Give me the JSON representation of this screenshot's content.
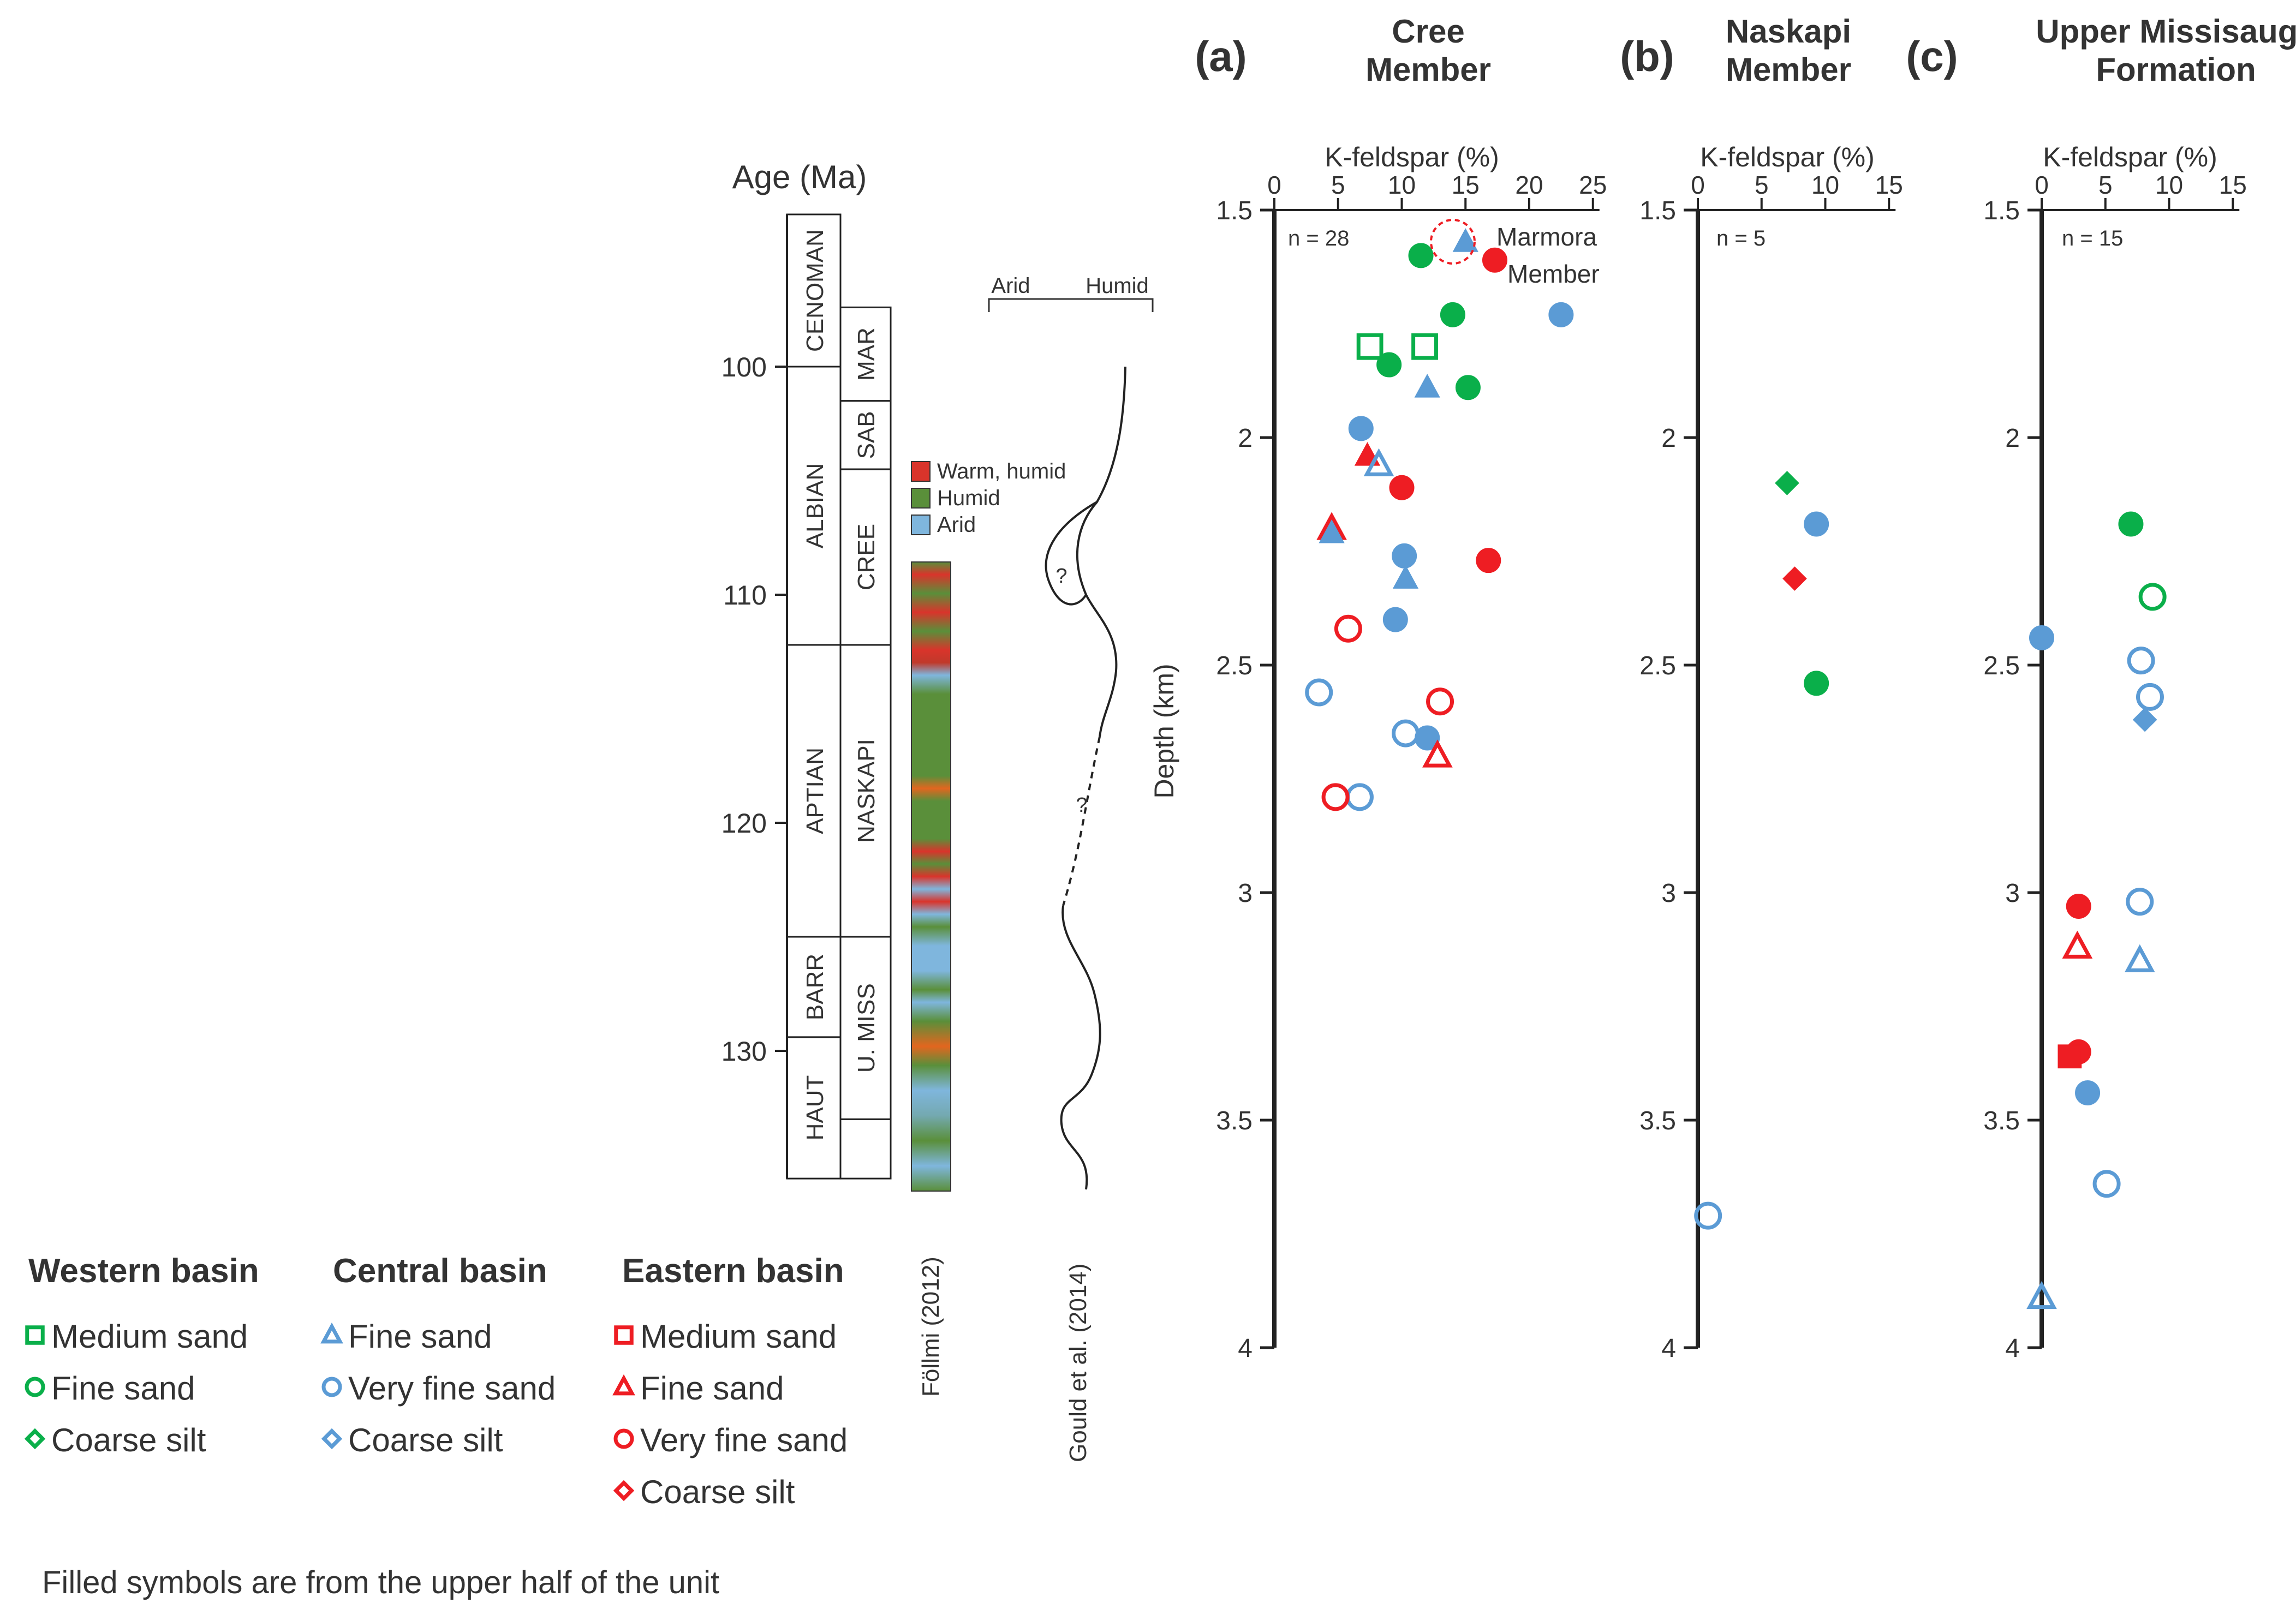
{
  "colors": {
    "western": "#0aaf4a",
    "central": "#5b9bd5",
    "eastern": "#ee1d23",
    "axis": "#222222",
    "warm_humid": "#d9342b",
    "humid": "#5a8f3a",
    "arid": "#7fb6dd"
  },
  "stratigraphy": {
    "age_title": "Age (Ma)",
    "age_ticks": [
      "100",
      "110",
      "120",
      "130"
    ],
    "stages": [
      {
        "label": "CENOMAN",
        "top": 93.9,
        "bottom": 100
      },
      {
        "label": "ALBIAN",
        "top": 100,
        "bottom": 112.2
      },
      {
        "label": "APTIAN",
        "top": 112.2,
        "bottom": 125
      },
      {
        "label": "BARR",
        "top": 125,
        "bottom": 129.4
      },
      {
        "label": "HAUT",
        "top": 129.4,
        "bottom": 135.6
      }
    ],
    "units": [
      {
        "label": "MAR",
        "top": 97.4,
        "bottom": 101.5
      },
      {
        "label": "SAB",
        "top": 101.5,
        "bottom": 104.5
      },
      {
        "label": "CREE",
        "top": 104.5,
        "bottom": 112.2
      },
      {
        "label": "NASKAPI",
        "top": 112.2,
        "bottom": 125
      },
      {
        "label": "U. MISS",
        "top": 125,
        "bottom": 133
      }
    ],
    "climate_legend": [
      "Warm, humid",
      "Humid",
      "Arid"
    ],
    "follmi_label": "Föllmi (2012)",
    "gould_label": "Gould et al. (2014)",
    "arid_label": "Arid",
    "humid_label": "Humid",
    "question_marks": [
      "?",
      "?"
    ]
  },
  "panels": [
    {
      "letter": "(a)",
      "title_lines": [
        "Cree",
        "Member"
      ],
      "x_label": "K-feldspar (%)",
      "n_label": "n = 28"
    },
    {
      "letter": "(b)",
      "title_lines": [
        "Naskapi",
        "Member"
      ],
      "x_label": "K-feldspar (%)",
      "n_label": "n = 5"
    },
    {
      "letter": "(c)",
      "title_lines": [
        "Upper Missisauga",
        "Formation"
      ],
      "x_label": "K-feldspar (%)",
      "n_label": "n = 15"
    }
  ],
  "y_axis_label": "Depth (km)",
  "marmora_label": [
    "Marmora",
    "Member"
  ],
  "legend": {
    "groups": [
      {
        "title": "Western basin",
        "items": [
          "Medium sand",
          "Fine sand",
          "Coarse silt"
        ]
      },
      {
        "title": "Central basin",
        "items": [
          "Fine sand",
          "Very fine sand",
          "Coarse silt"
        ]
      },
      {
        "title": "Eastern basin",
        "items": [
          "Medium sand",
          "Fine sand",
          "Very fine sand",
          "Coarse silt"
        ]
      }
    ],
    "note": "Filled symbols are from the upper half of the unit"
  },
  "chart_data": [
    {
      "type": "scatter",
      "title": "Cree Member",
      "xlabel": "K-feldspar (%)",
      "ylabel": "Depth (km)",
      "xlim": [
        0,
        25
      ],
      "ylim": [
        1.5,
        4
      ],
      "x_ticks": [
        "0",
        "5",
        "10",
        "15",
        "20",
        "25"
      ],
      "y_ticks": [
        "1.5",
        "2",
        "2.5",
        "3",
        "3.5",
        "4"
      ],
      "points": [
        {
          "x": 15,
          "y": 1.57,
          "basin": "central",
          "shape": "triangle",
          "filled": true
        },
        {
          "x": 11.5,
          "y": 1.6,
          "basin": "western",
          "shape": "circle",
          "filled": true
        },
        {
          "x": 17.3,
          "y": 1.61,
          "basin": "eastern",
          "shape": "circle",
          "filled": true
        },
        {
          "x": 14,
          "y": 1.73,
          "basin": "western",
          "shape": "circle",
          "filled": true
        },
        {
          "x": 22.5,
          "y": 1.73,
          "basin": "central",
          "shape": "circle",
          "filled": true
        },
        {
          "x": 7.5,
          "y": 1.8,
          "basin": "western",
          "shape": "square",
          "filled": false
        },
        {
          "x": 11.8,
          "y": 1.8,
          "basin": "western",
          "shape": "square",
          "filled": false
        },
        {
          "x": 9,
          "y": 1.84,
          "basin": "western",
          "shape": "circle",
          "filled": true
        },
        {
          "x": 12,
          "y": 1.89,
          "basin": "central",
          "shape": "triangle",
          "filled": true
        },
        {
          "x": 15.2,
          "y": 1.89,
          "basin": "western",
          "shape": "circle",
          "filled": true
        },
        {
          "x": 6.8,
          "y": 1.98,
          "basin": "central",
          "shape": "circle",
          "filled": true
        },
        {
          "x": 7.3,
          "y": 2.04,
          "basin": "eastern",
          "shape": "triangle",
          "filled": true
        },
        {
          "x": 8.2,
          "y": 2.06,
          "basin": "central",
          "shape": "triangle",
          "filled": false
        },
        {
          "x": 10,
          "y": 2.11,
          "basin": "eastern",
          "shape": "circle",
          "filled": true
        },
        {
          "x": 4.5,
          "y": 2.2,
          "basin": "eastern",
          "shape": "triangle",
          "filled": false
        },
        {
          "x": 4.5,
          "y": 2.21,
          "basin": "central",
          "shape": "triangle",
          "filled": true
        },
        {
          "x": 10.2,
          "y": 2.26,
          "basin": "central",
          "shape": "circle",
          "filled": true
        },
        {
          "x": 16.8,
          "y": 2.27,
          "basin": "eastern",
          "shape": "circle",
          "filled": true
        },
        {
          "x": 10.3,
          "y": 2.31,
          "basin": "central",
          "shape": "triangle",
          "filled": true
        },
        {
          "x": 9.5,
          "y": 2.4,
          "basin": "central",
          "shape": "circle",
          "filled": true
        },
        {
          "x": 5.8,
          "y": 2.42,
          "basin": "eastern",
          "shape": "circle",
          "filled": false
        },
        {
          "x": 3.5,
          "y": 2.56,
          "basin": "central",
          "shape": "circle",
          "filled": false
        },
        {
          "x": 13,
          "y": 2.58,
          "basin": "eastern",
          "shape": "circle",
          "filled": false
        },
        {
          "x": 10.3,
          "y": 2.65,
          "basin": "central",
          "shape": "circle",
          "filled": false
        },
        {
          "x": 12,
          "y": 2.66,
          "basin": "central",
          "shape": "circle",
          "filled": true
        },
        {
          "x": 12.8,
          "y": 2.7,
          "basin": "eastern",
          "shape": "triangle",
          "filled": false
        },
        {
          "x": 6.7,
          "y": 2.79,
          "basin": "central",
          "shape": "circle",
          "filled": false
        },
        {
          "x": 4.8,
          "y": 2.79,
          "basin": "eastern",
          "shape": "circle",
          "filled": false
        }
      ]
    },
    {
      "type": "scatter",
      "title": "Naskapi Member",
      "xlabel": "K-feldspar (%)",
      "ylabel": "Depth (km)",
      "xlim": [
        0,
        15
      ],
      "ylim": [
        1.5,
        4
      ],
      "x_ticks": [
        "0",
        "5",
        "10",
        "15"
      ],
      "y_ticks": [
        "1.5",
        "2",
        "2.5",
        "3",
        "3.5",
        "4"
      ],
      "points": [
        {
          "x": 7,
          "y": 2.1,
          "basin": "western",
          "shape": "diamond",
          "filled": true
        },
        {
          "x": 9.3,
          "y": 2.19,
          "basin": "central",
          "shape": "circle",
          "filled": true
        },
        {
          "x": 7.6,
          "y": 2.31,
          "basin": "eastern",
          "shape": "diamond",
          "filled": true
        },
        {
          "x": 9.3,
          "y": 2.54,
          "basin": "western",
          "shape": "circle",
          "filled": true
        },
        {
          "x": 0.8,
          "y": 3.71,
          "basin": "central",
          "shape": "circle",
          "filled": false
        }
      ]
    },
    {
      "type": "scatter",
      "title": "Upper Missisauga Formation",
      "xlabel": "K-feldspar (%)",
      "ylabel": "Depth (km)",
      "xlim": [
        0,
        15
      ],
      "ylim": [
        1.5,
        4
      ],
      "x_ticks": [
        "0",
        "5",
        "10",
        "15"
      ],
      "y_ticks": [
        "1.5",
        "2",
        "2.5",
        "3",
        "3.5",
        "4"
      ],
      "points": [
        {
          "x": 7,
          "y": 2.19,
          "basin": "western",
          "shape": "circle",
          "filled": true
        },
        {
          "x": 8.7,
          "y": 2.35,
          "basin": "western",
          "shape": "circle",
          "filled": false
        },
        {
          "x": 0,
          "y": 2.44,
          "basin": "central",
          "shape": "circle",
          "filled": true
        },
        {
          "x": 7.8,
          "y": 2.49,
          "basin": "central",
          "shape": "circle",
          "filled": false
        },
        {
          "x": 8.5,
          "y": 2.57,
          "basin": "central",
          "shape": "circle",
          "filled": false
        },
        {
          "x": 8.1,
          "y": 2.62,
          "basin": "central",
          "shape": "diamond",
          "filled": true
        },
        {
          "x": 2.9,
          "y": 3.03,
          "basin": "eastern",
          "shape": "circle",
          "filled": true
        },
        {
          "x": 7.7,
          "y": 3.02,
          "basin": "central",
          "shape": "circle",
          "filled": false
        },
        {
          "x": 2.8,
          "y": 3.12,
          "basin": "eastern",
          "shape": "triangle",
          "filled": false
        },
        {
          "x": 7.7,
          "y": 3.15,
          "basin": "central",
          "shape": "triangle",
          "filled": false
        },
        {
          "x": 2.9,
          "y": 3.35,
          "basin": "eastern",
          "shape": "circle",
          "filled": true
        },
        {
          "x": 2.2,
          "y": 3.36,
          "basin": "eastern",
          "shape": "square",
          "filled": true
        },
        {
          "x": 3.6,
          "y": 3.44,
          "basin": "central",
          "shape": "circle",
          "filled": true
        },
        {
          "x": 5.1,
          "y": 3.64,
          "basin": "central",
          "shape": "circle",
          "filled": false
        },
        {
          "x": 0,
          "y": 3.89,
          "basin": "central",
          "shape": "triangle",
          "filled": false
        }
      ]
    }
  ]
}
